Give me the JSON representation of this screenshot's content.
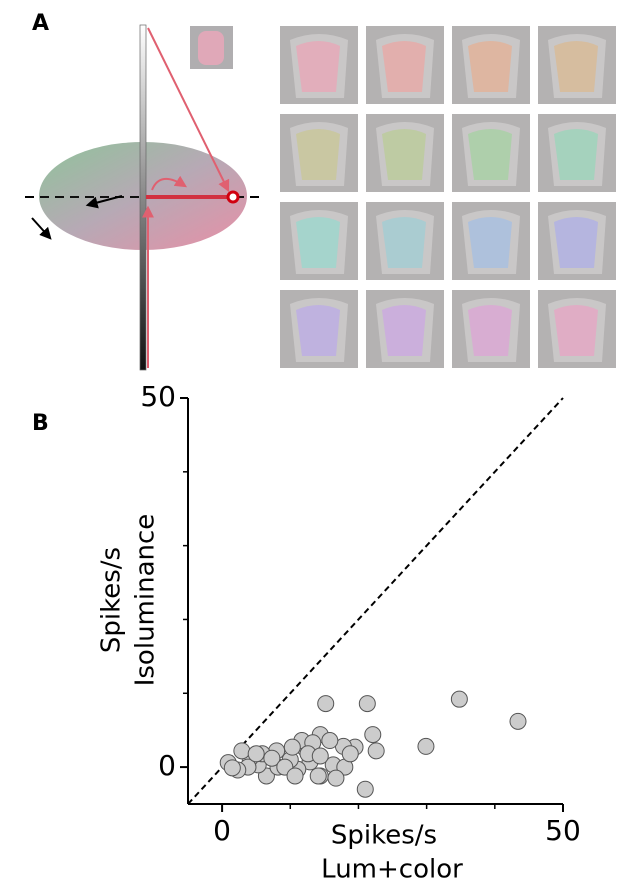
{
  "panels": [
    "A",
    "B"
  ],
  "chart_data": {
    "type": "scatter",
    "xlabel": [
      "Spikes/s",
      "Lum+color"
    ],
    "ylabel": [
      "Spikes/s",
      "Isoluminance"
    ],
    "xlim": [
      -5,
      50
    ],
    "ylim": [
      -5,
      50
    ],
    "xticks": [
      0,
      50
    ],
    "yticks": [
      0,
      50
    ],
    "xminor": [
      10,
      20,
      30,
      40
    ],
    "yminor": [
      10,
      20,
      30,
      40
    ],
    "color": "#cccccc",
    "x": [
      34.8,
      43.4,
      29.9,
      22.1,
      22.6,
      21.3,
      15.2,
      21.0,
      19.5,
      17.8,
      16.3,
      14.4,
      15.8,
      12.2,
      12.9,
      11.1,
      14.4,
      11.7,
      10.0,
      8.0,
      6.5,
      8.2,
      5.3,
      5.9,
      4.1,
      2.9,
      3.8,
      2.3,
      0.9,
      1.5,
      7.3,
      9.2,
      13.3,
      14.1,
      18.0,
      16.7,
      18.8,
      12.6,
      14.4,
      10.7,
      5.0,
      10.3
    ],
    "y": [
      9.2,
      6.2,
      2.8,
      4.4,
      2.2,
      8.6,
      8.6,
      -3.0,
      2.7,
      2.8,
      0.3,
      4.4,
      3.6,
      2.5,
      0.7,
      -0.3,
      -1.2,
      3.6,
      1.0,
      2.2,
      -1.2,
      0,
      0.3,
      1.8,
      1.2,
      2.2,
      0,
      -0.4,
      0.6,
      -0.1,
      1.2,
      0,
      3.3,
      -1.2,
      0,
      -1.5,
      1.8,
      1.8,
      1.5,
      -1.2,
      1.8,
      2.7
    ]
  }
}
